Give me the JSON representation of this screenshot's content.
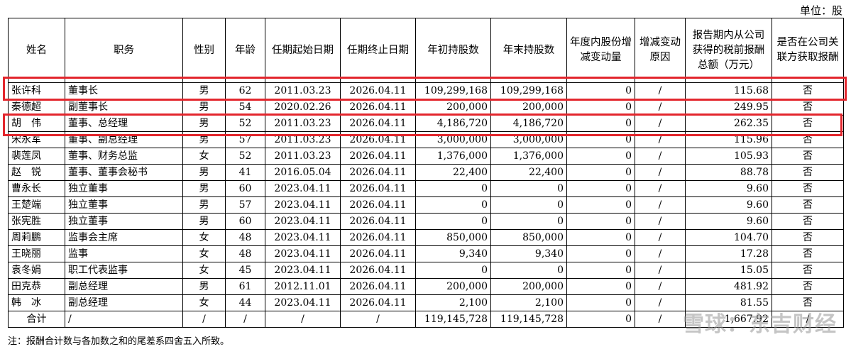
{
  "unit_label": "单位：股",
  "headers": [
    "姓名",
    "职务",
    "性别",
    "年龄",
    "任期起始日期",
    "任期终止日期",
    "年初持股数",
    "年末持股数",
    "年度内股份增减变动量",
    "增减变动原因",
    "报告期内从公司获得的税前报酬总额（万元）",
    "是否在公司关联方获取报酬"
  ],
  "rows": [
    [
      "张许科",
      "董事长",
      "男",
      "62",
      "2011.03.23",
      "2026.04.11",
      "109,299,168",
      "109,299,168",
      "0",
      "/",
      "115.68",
      "否"
    ],
    [
      "秦德超",
      "副董事长",
      "男",
      "54",
      "2020.02.26",
      "2026.04.11",
      "200,000",
      "200,000",
      "0",
      "/",
      "249.95",
      "否"
    ],
    [
      "胡　伟",
      "董事、总经理",
      "男",
      "52",
      "2011.03.23",
      "2026.04.11",
      "4,186,720",
      "4,186,720",
      "0",
      "/",
      "262.35",
      "否"
    ],
    [
      "宋永军",
      "董事、副总经理",
      "男",
      "57",
      "2011.03.23",
      "2026.04.11",
      "3,000,000",
      "3,000,000",
      "0",
      "/",
      "115.96",
      "否"
    ],
    [
      "裴莲凤",
      "董事、财务总监",
      "女",
      "52",
      "2011.03.23",
      "2026.04.11",
      "1,376,000",
      "1,376,000",
      "0",
      "/",
      "105.93",
      "否"
    ],
    [
      "赵　锐",
      "董事、董事会秘书",
      "男",
      "41",
      "2016.05.04",
      "2026.04.11",
      "22,400",
      "22,400",
      "0",
      "/",
      "88.78",
      "否"
    ],
    [
      "曹永长",
      "独立董事",
      "男",
      "60",
      "2023.04.11",
      "2026.04.11",
      "0",
      "0",
      "0",
      "/",
      "9.60",
      "否"
    ],
    [
      "王楚端",
      "独立董事",
      "男",
      "57",
      "2023.04.11",
      "2026.04.11",
      "0",
      "0",
      "0",
      "/",
      "9.60",
      "否"
    ],
    [
      "张宪胜",
      "独立董事",
      "男",
      "60",
      "2023.04.11",
      "2026.04.11",
      "0",
      "0",
      "0",
      "/",
      "9.60",
      "否"
    ],
    [
      "周莉鹏",
      "监事会主席",
      "女",
      "48",
      "2023.04.11",
      "2026.04.11",
      "850,000",
      "850,000",
      "0",
      "/",
      "104.70",
      "否"
    ],
    [
      "王晓丽",
      "监事",
      "女",
      "48",
      "2023.04.11",
      "2026.04.11",
      "9,340",
      "9,340",
      "0",
      "/",
      "17.28",
      "否"
    ],
    [
      "袁冬娟",
      "职工代表监事",
      "女",
      "45",
      "2023.04.11",
      "2026.04.11",
      "0",
      "0",
      "0",
      "/",
      "15.05",
      "否"
    ],
    [
      "田克恭",
      "副总经理",
      "男",
      "61",
      "2012.11.01",
      "2026.04.11",
      "200,000",
      "200,000",
      "0",
      "/",
      "481.92",
      "否"
    ],
    [
      "韩　冰",
      "副总经理",
      "女",
      "44",
      "2023.04.11",
      "2026.04.11",
      "2,100",
      "2,100",
      "0",
      "/",
      "81.55",
      "否"
    ]
  ],
  "total_row": [
    "合计",
    "/",
    "/",
    "/",
    "/",
    "/",
    "119,145,728",
    "119,145,728",
    "0",
    "/",
    "1,667.92",
    "/"
  ],
  "note": "注：报酬合计数与各加数之和的尾差系四舍五入所致。",
  "watermark": "雪球：东吉财经",
  "highlight_color": "#e3262d"
}
